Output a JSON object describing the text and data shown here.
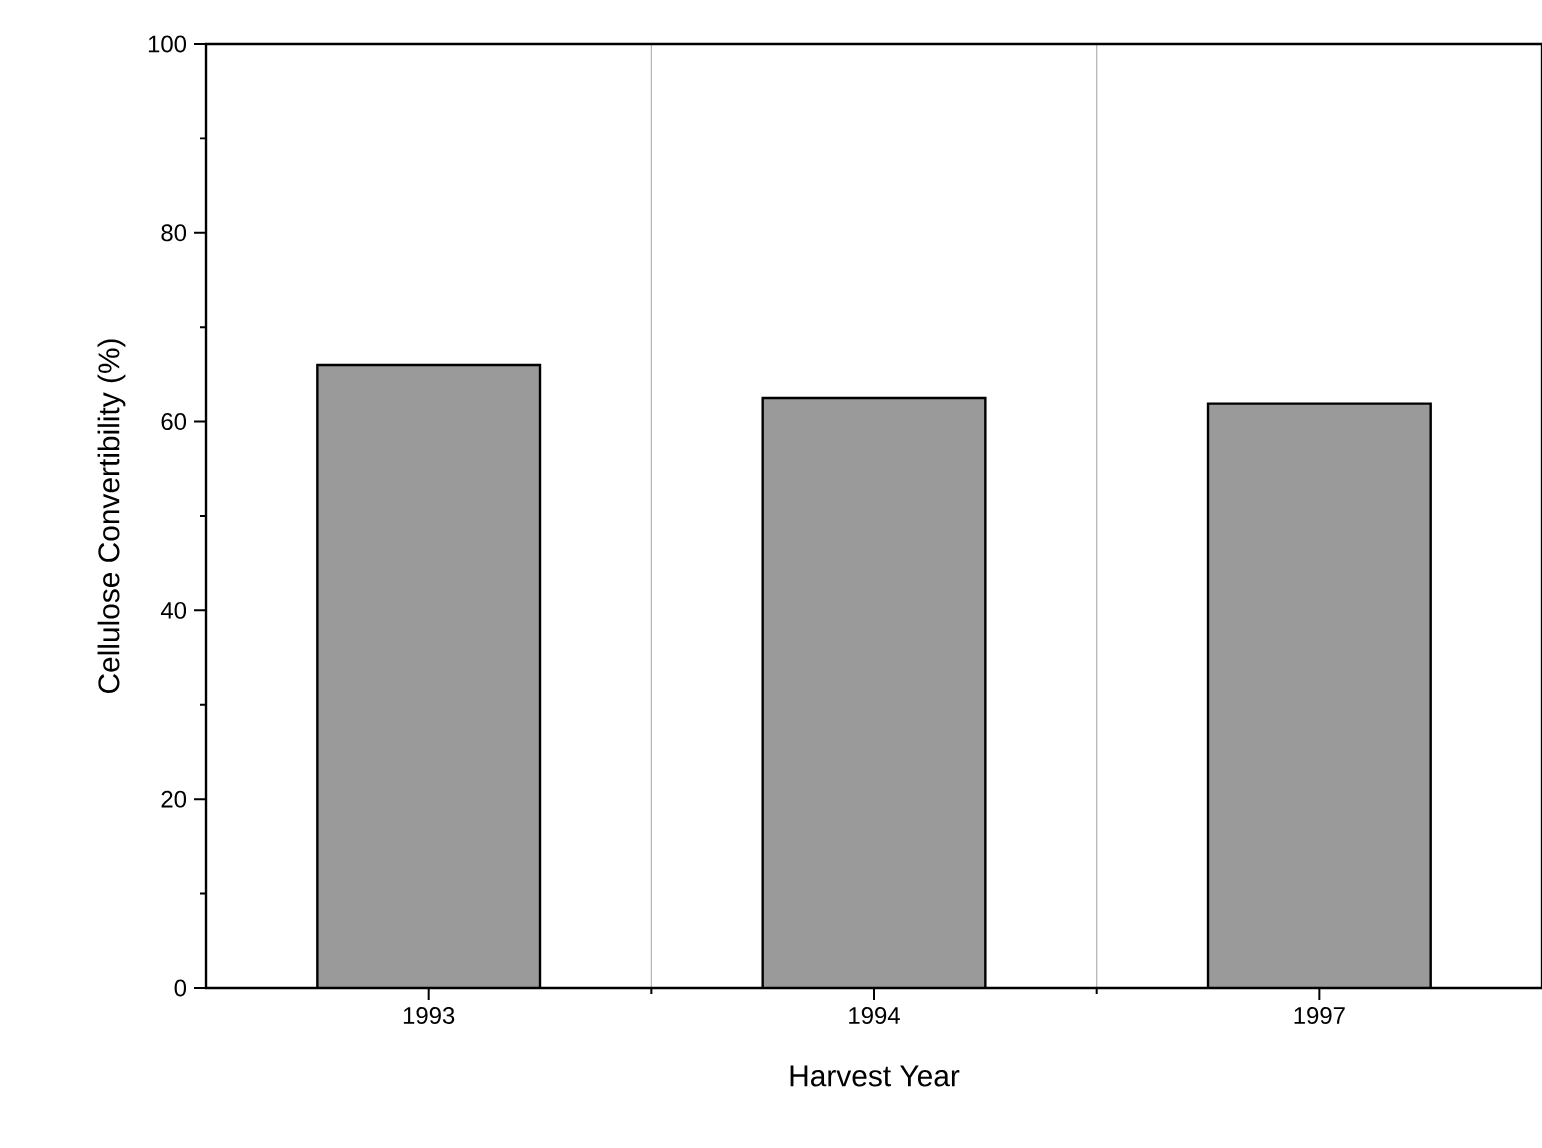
{
  "chart_data": {
    "type": "bar",
    "xlabel": "Harvest Year",
    "ylabel": "Cellulose Convertibility (%)",
    "categories": [
      "1993",
      "1994",
      "1997"
    ],
    "values": [
      66,
      62.5,
      61.9
    ],
    "color": "#9a9a9a",
    "ylim": [
      0,
      100
    ],
    "yticks": [
      0,
      20,
      40,
      60,
      80,
      100
    ],
    "grid": "x"
  }
}
